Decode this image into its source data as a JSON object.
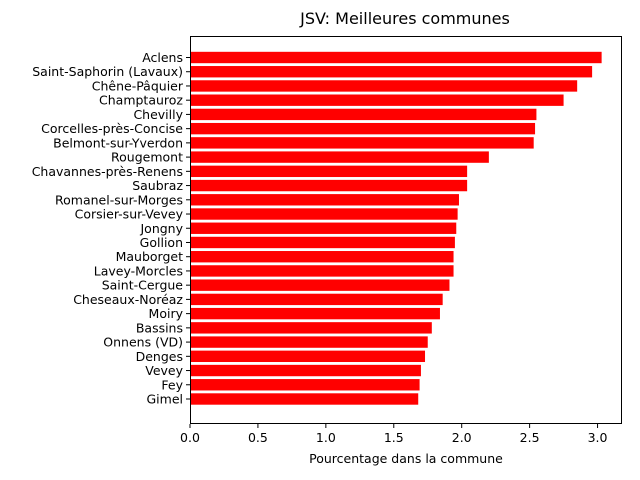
{
  "chart_data": {
    "type": "bar",
    "orientation": "horizontal",
    "title": "JSV: Meilleures communes",
    "xlabel": "Pourcentage dans la commune",
    "ylabel": "",
    "xlim": [
      0,
      3.18
    ],
    "xticks": [
      "0.0",
      "0.5",
      "1.0",
      "1.5",
      "2.0",
      "2.5",
      "3.0"
    ],
    "bar_color": "#ff0000",
    "grid": false,
    "categories": [
      "Aclens",
      "Saint-Saphorin (Lavaux)",
      "Chêne-Pâquier",
      "Champtauroz",
      "Chevilly",
      "Corcelles-près-Concise",
      "Belmont-sur-Yverdon",
      "Rougemont",
      "Chavannes-près-Renens",
      "Saubraz",
      "Romanel-sur-Morges",
      "Corsier-sur-Vevey",
      "Jongny",
      "Gollion",
      "Mauborget",
      "Lavey-Morcles",
      "Saint-Cergue",
      "Cheseaux-Noréaz",
      "Moiry",
      "Bassins",
      "Onnens (VD)",
      "Denges",
      "Vevey",
      "Fey",
      "Gimel"
    ],
    "values": [
      3.03,
      2.96,
      2.85,
      2.75,
      2.55,
      2.54,
      2.53,
      2.2,
      2.04,
      2.04,
      1.98,
      1.97,
      1.96,
      1.95,
      1.94,
      1.94,
      1.91,
      1.86,
      1.84,
      1.78,
      1.75,
      1.73,
      1.7,
      1.69,
      1.68
    ]
  }
}
